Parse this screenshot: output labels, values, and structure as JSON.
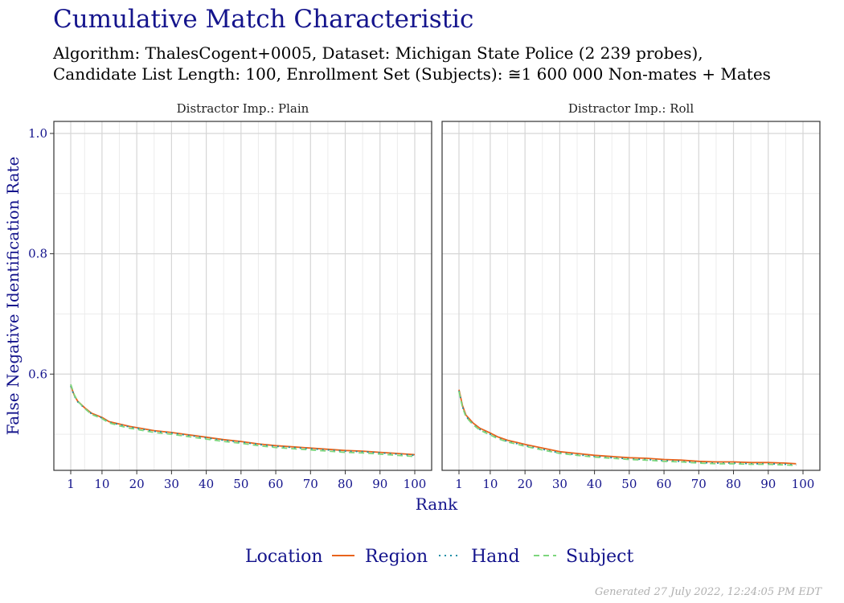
{
  "title": "Cumulative Match Characteristic",
  "subtitle_line1": "Algorithm: ThalesCogent+0005, Dataset: Michigan State Police (2 239 probes),",
  "subtitle_line2": "Candidate List Length: 100, Enrollment Set (Subjects): ≅1 600 000 Non-mates + Mates",
  "footer": "Generated 27 July 2022, 12:24:05 PM EDT",
  "colors": {
    "Region": "#e8641c",
    "Hand": "#1b8fa6",
    "Subject": "#7dd67d",
    "accent": "#14148c"
  },
  "chart_data": [
    {
      "type": "line",
      "panel_title": "Distractor Imp.: Plain",
      "xlabel": "Rank",
      "ylabel": "False Negative Identification Rate",
      "xlim": [
        1,
        100
      ],
      "ylim": [
        0.44,
        1.02
      ],
      "x_ticks": [
        1,
        10,
        20,
        30,
        40,
        50,
        60,
        70,
        80,
        90,
        100
      ],
      "y_ticks": [
        0.6,
        0.8,
        1.0
      ],
      "y_tick_labels": [
        "0.6",
        "0.8",
        "1.0"
      ],
      "grid": true,
      "legend_title": "Location",
      "legend_position": "bottom",
      "x": [
        1,
        2,
        3,
        5,
        7,
        10,
        12,
        15,
        18,
        20,
        25,
        30,
        35,
        40,
        45,
        50,
        55,
        60,
        65,
        70,
        75,
        80,
        85,
        90,
        95,
        100
      ],
      "series": [
        {
          "name": "Region",
          "style": "solid",
          "values": [
            0.581,
            0.565,
            0.555,
            0.544,
            0.535,
            0.528,
            0.521,
            0.517,
            0.513,
            0.511,
            0.506,
            0.503,
            0.499,
            0.495,
            0.491,
            0.488,
            0.484,
            0.481,
            0.479,
            0.477,
            0.475,
            0.473,
            0.472,
            0.47,
            0.468,
            0.466
          ]
        },
        {
          "name": "Hand",
          "style": "dotted",
          "values": [
            0.58,
            0.564,
            0.554,
            0.543,
            0.534,
            0.527,
            0.52,
            0.516,
            0.512,
            0.51,
            0.505,
            0.502,
            0.498,
            0.494,
            0.49,
            0.487,
            0.483,
            0.48,
            0.478,
            0.476,
            0.474,
            0.472,
            0.471,
            0.469,
            0.467,
            0.465
          ]
        },
        {
          "name": "Subject",
          "style": "dashed",
          "values": [
            0.583,
            0.566,
            0.555,
            0.543,
            0.533,
            0.526,
            0.519,
            0.514,
            0.51,
            0.508,
            0.503,
            0.5,
            0.496,
            0.492,
            0.488,
            0.485,
            0.481,
            0.478,
            0.476,
            0.474,
            0.472,
            0.47,
            0.469,
            0.467,
            0.465,
            0.463
          ]
        }
      ]
    },
    {
      "type": "line",
      "panel_title": "Distractor Imp.: Roll",
      "xlabel": "Rank",
      "ylabel": "False Negative Identification Rate",
      "xlim": [
        1,
        100
      ],
      "ylim": [
        0.44,
        1.02
      ],
      "x_ticks": [
        1,
        10,
        20,
        30,
        40,
        50,
        60,
        70,
        80,
        90,
        100
      ],
      "y_ticks": [
        0.6,
        0.8,
        1.0
      ],
      "y_tick_labels": [
        "0.6",
        "0.8",
        "1.0"
      ],
      "grid": true,
      "legend_title": "Location",
      "legend_position": "bottom",
      "x": [
        1,
        2,
        3,
        5,
        7,
        10,
        12,
        15,
        18,
        20,
        25,
        30,
        35,
        40,
        45,
        50,
        55,
        60,
        65,
        70,
        75,
        80,
        85,
        90,
        95,
        98
      ],
      "series": [
        {
          "name": "Region",
          "style": "solid",
          "values": [
            0.574,
            0.548,
            0.532,
            0.519,
            0.51,
            0.502,
            0.496,
            0.49,
            0.486,
            0.483,
            0.477,
            0.471,
            0.468,
            0.465,
            0.463,
            0.461,
            0.46,
            0.458,
            0.457,
            0.455,
            0.454,
            0.454,
            0.453,
            0.453,
            0.452,
            0.451
          ]
        },
        {
          "name": "Hand",
          "style": "dotted",
          "values": [
            0.572,
            0.546,
            0.53,
            0.517,
            0.508,
            0.5,
            0.494,
            0.488,
            0.484,
            0.481,
            0.475,
            0.469,
            0.466,
            0.463,
            0.461,
            0.459,
            0.458,
            0.456,
            0.455,
            0.453,
            0.452,
            0.452,
            0.451,
            0.451,
            0.45,
            0.449
          ]
        },
        {
          "name": "Subject",
          "style": "dashed",
          "values": [
            0.571,
            0.545,
            0.529,
            0.516,
            0.507,
            0.499,
            0.493,
            0.487,
            0.483,
            0.48,
            0.474,
            0.468,
            0.465,
            0.462,
            0.46,
            0.458,
            0.457,
            0.455,
            0.454,
            0.452,
            0.451,
            0.451,
            0.45,
            0.45,
            0.449,
            0.448
          ]
        }
      ]
    }
  ],
  "legend": {
    "title": "Location",
    "items": [
      "Region",
      "Hand",
      "Subject"
    ]
  }
}
